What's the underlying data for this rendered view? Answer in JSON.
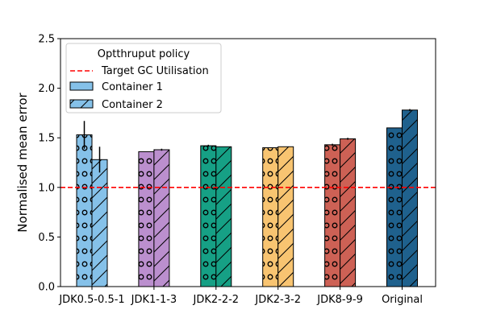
{
  "chart_data": {
    "type": "bar",
    "ylabel": "Normalised mean error",
    "xlabel": "",
    "ylim": [
      0,
      2.5
    ],
    "yticks": [
      "0.0",
      "0.5",
      "1.0",
      "1.5",
      "2.0",
      "2.5"
    ],
    "grid": false,
    "categories": [
      "JDK0.5-0.5-1",
      "JDK1-1-3",
      "JDK2-2-2",
      "JDK2-3-2",
      "JDK8-9-9",
      "Original"
    ],
    "category_colors": [
      "#85c1e9",
      "#bb8fce",
      "#16a085",
      "#f8c471",
      "#cd6155",
      "#1f618d"
    ],
    "series": [
      {
        "name": "Container 1",
        "pattern": "circles",
        "values": [
          1.53,
          1.36,
          1.42,
          1.4,
          1.43,
          1.6
        ],
        "errors": [
          0.14,
          0.0,
          0.01,
          0.0,
          0.01,
          0.0
        ]
      },
      {
        "name": "Container 2",
        "pattern": "slashes",
        "values": [
          1.28,
          1.38,
          1.41,
          1.41,
          1.49,
          1.78
        ],
        "errors": [
          0.13,
          0.01,
          0.0,
          0.0,
          0.01,
          0.01
        ]
      }
    ],
    "reference_line": {
      "label": "Target GC Utilisation",
      "y": 1.0,
      "color": "#ff0000",
      "style": "dashed"
    },
    "legend": {
      "title": "Optthruput policy",
      "position": "top-left"
    }
  }
}
